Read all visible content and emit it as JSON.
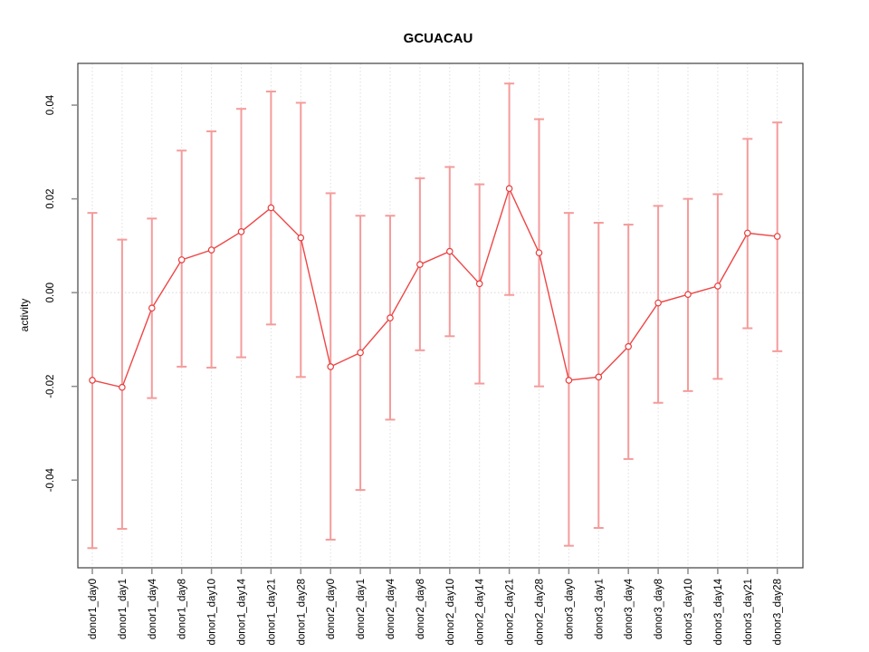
{
  "title": "GCUACAU",
  "chart_data": {
    "type": "line",
    "subtype": "points-with-error-bars",
    "title": "GCUACAU",
    "xlabel": "",
    "ylabel": "activity",
    "legend": "none",
    "grid": "vertical dotted gridline per category; horizontal dotted line at y=0",
    "ylim": [
      -0.0587,
      0.0489
    ],
    "yticks": [
      -0.04,
      -0.02,
      0,
      0.02,
      0.04
    ],
    "ytick_labels": [
      "-0.04",
      "-0.02",
      "0.00",
      "0.02",
      "0.04"
    ],
    "categories": [
      "donor1_day0",
      "donor1_day1",
      "donor1_day4",
      "donor1_day8",
      "donor1_day10",
      "donor1_day14",
      "donor1_day21",
      "donor1_day28",
      "donor2_day0",
      "donor2_day1",
      "donor2_day4",
      "donor2_day8",
      "donor2_day10",
      "donor2_day14",
      "donor2_day21",
      "donor2_day28",
      "donor3_day0",
      "donor3_day1",
      "donor3_day4",
      "donor3_day8",
      "donor3_day10",
      "donor3_day14",
      "donor3_day21",
      "donor3_day28"
    ],
    "series": [
      {
        "name": "activity",
        "values": [
          -0.0187,
          -0.0202,
          -0.0033,
          0.007,
          0.0091,
          0.013,
          0.0181,
          0.0117,
          -0.0158,
          -0.0128,
          -0.0054,
          0.006,
          0.0088,
          0.0019,
          0.0222,
          0.0085,
          -0.0187,
          -0.018,
          -0.0115,
          -0.0022,
          -0.0004,
          0.0014,
          0.0127,
          0.012
        ],
        "upper": [
          0.017,
          0.0113,
          0.0158,
          0.0303,
          0.0344,
          0.0392,
          0.0429,
          0.0405,
          0.0212,
          0.0164,
          0.0164,
          0.0244,
          0.0268,
          0.0231,
          0.0446,
          0.037,
          0.017,
          0.0149,
          0.0145,
          0.0185,
          0.02,
          0.021,
          0.0328,
          0.0363
        ],
        "lower": [
          -0.0545,
          -0.0504,
          -0.0225,
          -0.0158,
          -0.016,
          -0.0138,
          -0.0068,
          -0.018,
          -0.0527,
          -0.0421,
          -0.0271,
          -0.0123,
          -0.0093,
          -0.0194,
          -0.0005,
          -0.02,
          -0.054,
          -0.0502,
          -0.0355,
          -0.0235,
          -0.021,
          -0.0184,
          -0.0076,
          -0.0125
        ]
      }
    ],
    "colors": {
      "point": "#e53e3e",
      "line": "#ef4545",
      "errorbar": "#f59b9b",
      "grid": "#dedede",
      "zero_line": "#d6d6d6",
      "axis": "#404040",
      "tick": "#8c8c8c",
      "text": "#000000",
      "background": "#ffffff"
    }
  }
}
